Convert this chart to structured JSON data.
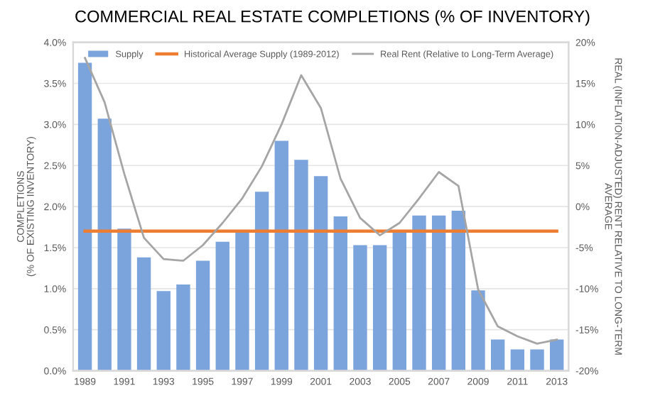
{
  "chart_data": {
    "type": "bar",
    "title": "COMMERCIAL REAL ESTATE COMPLETIONS (% OF INVENTORY)",
    "ylabel": "COMPLETIONS\n(% OF EXISTING INVENTORY)",
    "y2label": "REAL (INFLATION-ADJUSTED) RENT RELATIVE TO LONG-TERM\nAVERAGE",
    "categories": [
      "1989",
      null,
      "1991",
      null,
      "1993",
      null,
      "1995",
      null,
      "1997",
      null,
      "1999",
      null,
      "2001",
      null,
      "2003",
      null,
      "2005",
      null,
      "2007",
      null,
      "2009",
      null,
      "2011",
      null,
      "2013"
    ],
    "series": [
      {
        "name": "Supply",
        "color": "#7ba3dc",
        "values": [
          3.75,
          3.07,
          1.73,
          1.38,
          0.97,
          1.05,
          1.34,
          1.57,
          1.71,
          2.18,
          2.8,
          2.57,
          2.37,
          1.88,
          1.53,
          1.53,
          1.71,
          1.89,
          1.89,
          1.95,
          0.98,
          0.38,
          0.26,
          0.26,
          0.38
        ]
      },
      {
        "name": "Historical Average Supply (1989-2012)",
        "type": "line",
        "color": "#ed7d31",
        "values": [
          1.7,
          1.7,
          1.7,
          1.7,
          1.7,
          1.7,
          1.7,
          1.7,
          1.7,
          1.7,
          1.7,
          1.7,
          1.7,
          1.7,
          1.7,
          1.7,
          1.7,
          1.7,
          1.7,
          1.7,
          1.7,
          1.7,
          1.7,
          1.7,
          1.7
        ]
      },
      {
        "name": "Real Rent (Relative to Long-Term Average)",
        "type": "line",
        "axis": "y2",
        "color": "#a5a5a5",
        "values": [
          18.1,
          12.7,
          4.0,
          -3.8,
          -6.4,
          -6.6,
          -4.7,
          -2.0,
          1.0,
          4.9,
          10.0,
          16.0,
          12.0,
          3.4,
          -1.4,
          -3.5,
          -2.0,
          1.0,
          4.2,
          2.5,
          -10.1,
          -14.6,
          -15.8,
          -16.7,
          -16.2
        ]
      }
    ],
    "ylim": [
      0,
      4
    ],
    "yticks": [
      {
        "value": 0,
        "label": "0.0%"
      },
      {
        "value": 0.5,
        "label": "0.5%"
      },
      {
        "value": 1,
        "label": "1.0%"
      },
      {
        "value": 1.5,
        "label": "1.5%"
      },
      {
        "value": 2,
        "label": "2.0%"
      },
      {
        "value": 2.5,
        "label": "2.5%"
      },
      {
        "value": 3,
        "label": "3.0%"
      },
      {
        "value": 3.5,
        "label": "3.5%"
      },
      {
        "value": 4,
        "label": "4.0%"
      }
    ],
    "y2lim": [
      -20,
      20
    ],
    "y2ticks": [
      {
        "value": -20,
        "label": "-20%"
      },
      {
        "value": -15,
        "label": "-15%"
      },
      {
        "value": -10,
        "label": "-10%"
      },
      {
        "value": -5,
        "label": "-5%"
      },
      {
        "value": 0,
        "label": "0%"
      },
      {
        "value": 5,
        "label": "5%"
      },
      {
        "value": 10,
        "label": "10%"
      },
      {
        "value": 15,
        "label": "15%"
      },
      {
        "value": 20,
        "label": "20%"
      }
    ],
    "grid": "y",
    "legend": "top"
  }
}
